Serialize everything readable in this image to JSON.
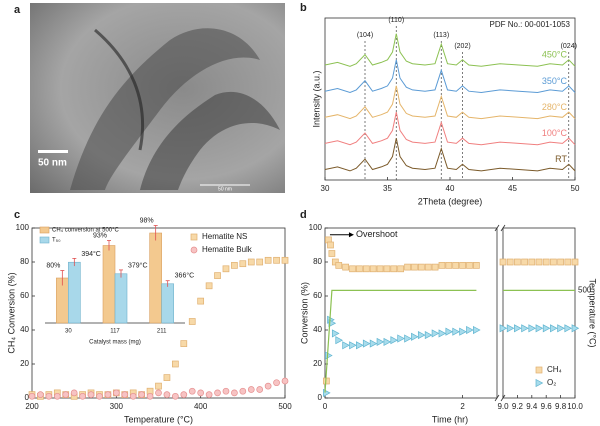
{
  "image_panel": {
    "panel": "a",
    "scale_bar": "50 nm",
    "ruler": "50 nm"
  },
  "chart_data": [
    {
      "type": "line",
      "panel": "b",
      "xlabel": "2Theta (degree)",
      "ylabel": "Intensity (a.u.)",
      "annotation": "PDF No.: 00-001-1053",
      "xlim": [
        30,
        50
      ],
      "xticks": [
        30,
        35,
        40,
        45,
        50
      ],
      "ylim": [
        0,
        6.2
      ],
      "reference_lines": [
        {
          "label": "(104)",
          "x": 33.2
        },
        {
          "label": "(110)",
          "x": 35.7
        },
        {
          "label": "(113)",
          "x": 39.3
        },
        {
          "label": "(202)",
          "x": 41
        },
        {
          "label": "(024)",
          "x": 49.5
        }
      ],
      "x": [
        30,
        31,
        32,
        32.5,
        33.2,
        33.8,
        34.5,
        35,
        35.4,
        35.7,
        36,
        36.5,
        37,
        38,
        38.8,
        39.3,
        39.8,
        40.5,
        41,
        41.5,
        42.5,
        44,
        45.5,
        47,
        48,
        49,
        49.5,
        50
      ],
      "series": [
        {
          "name": "RT",
          "color": "#7b5a2a",
          "values": [
            0.4,
            0.5,
            0.35,
            0.45,
            0.8,
            0.4,
            0.5,
            0.6,
            0.9,
            1.6,
            0.9,
            0.55,
            0.45,
            0.4,
            0.45,
            1.2,
            0.45,
            0.4,
            0.6,
            0.4,
            0.35,
            0.45,
            0.4,
            0.35,
            0.45,
            0.4,
            0.6,
            0.35
          ]
        },
        {
          "name": "100°C",
          "color": "#f07f7f",
          "values": [
            1.4,
            1.5,
            1.35,
            1.45,
            1.8,
            1.4,
            1.5,
            1.6,
            1.9,
            2.6,
            1.9,
            1.55,
            1.45,
            1.4,
            1.45,
            2.2,
            1.45,
            1.4,
            1.6,
            1.4,
            1.35,
            1.45,
            1.4,
            1.35,
            1.45,
            1.4,
            1.6,
            1.35
          ]
        },
        {
          "name": "280°C",
          "color": "#e5b56a",
          "values": [
            2.4,
            2.5,
            2.35,
            2.45,
            2.8,
            2.4,
            2.5,
            2.6,
            2.9,
            3.6,
            2.9,
            2.55,
            2.45,
            2.4,
            2.45,
            3.2,
            2.45,
            2.4,
            2.6,
            2.4,
            2.35,
            2.45,
            2.4,
            2.35,
            2.45,
            2.4,
            2.6,
            2.35
          ]
        },
        {
          "name": "350°C",
          "color": "#5b9bd5",
          "values": [
            3.4,
            3.5,
            3.35,
            3.45,
            3.8,
            3.4,
            3.5,
            3.6,
            3.9,
            4.6,
            3.9,
            3.55,
            3.45,
            3.4,
            3.45,
            4.2,
            3.45,
            3.4,
            3.6,
            3.4,
            3.35,
            3.45,
            3.4,
            3.35,
            3.45,
            3.4,
            3.6,
            3.35
          ]
        },
        {
          "name": "450°C",
          "color": "#8cc152",
          "values": [
            4.4,
            4.5,
            4.35,
            4.45,
            4.8,
            4.4,
            4.5,
            4.6,
            4.9,
            5.6,
            4.9,
            4.55,
            4.45,
            4.4,
            4.45,
            5.2,
            4.45,
            4.4,
            4.6,
            4.4,
            4.35,
            4.45,
            4.4,
            4.35,
            4.45,
            4.4,
            4.6,
            4.35
          ]
        }
      ]
    },
    {
      "type": "scatter",
      "panel": "c",
      "xlabel": "Temperature (°C)",
      "ylabel": "CH₄ Conversion (%)",
      "legend": "upper right",
      "xlim": [
        200,
        500
      ],
      "xticks": [
        200,
        300,
        400,
        500
      ],
      "ylim": [
        0,
        100
      ],
      "yticks": [
        0,
        20,
        40,
        60,
        80,
        100
      ],
      "x": [
        200,
        210,
        220,
        230,
        240,
        250,
        260,
        270,
        280,
        290,
        300,
        310,
        320,
        330,
        340,
        350,
        360,
        370,
        380,
        390,
        400,
        410,
        420,
        430,
        440,
        450,
        460,
        470,
        480,
        490,
        500
      ],
      "series": [
        {
          "name": "Hematite NS",
          "marker": "square",
          "color": "#f7d9a8",
          "edge": "#e0b070",
          "values": [
            2,
            1,
            2,
            3,
            2,
            1,
            2,
            3,
            2,
            2,
            3,
            2,
            3,
            2,
            4,
            7,
            12,
            20,
            32,
            45,
            57,
            66,
            72,
            76,
            78,
            79,
            80,
            80,
            81,
            81,
            81
          ]
        },
        {
          "name": "Hematite Bulk",
          "marker": "circle",
          "color": "#f7c3c3",
          "edge": "#e58f8f",
          "values": [
            1,
            2,
            1,
            1,
            2,
            3,
            1,
            2,
            1,
            2,
            3,
            2,
            1,
            2,
            1,
            3,
            2,
            1,
            2,
            4,
            3,
            2,
            3,
            4,
            3,
            4,
            5,
            5,
            7,
            9,
            10
          ]
        }
      ]
    },
    {
      "type": "bar",
      "xlabel": "Catalyst mass (mg)",
      "legend": "upper left",
      "categories": [
        "30",
        "117",
        "211"
      ],
      "ylim": [
        62,
        102
      ],
      "y2lim": [
        315,
        445
      ],
      "error_color": "#e05050",
      "series": [
        {
          "name": "CH₄ conversion at 500°C",
          "color": "#f3c98f",
          "edge": "#d9a060",
          "values": [
            80,
            93,
            98
          ],
          "errors": [
            3,
            2,
            3
          ],
          "value_labels": [
            "80%",
            "93%",
            "98%"
          ]
        },
        {
          "name": "T₅₀",
          "color": "#a8d8ea",
          "edge": "#6fb1cc",
          "axis": "y2",
          "values": [
            394,
            379,
            366
          ],
          "errors": [
            5,
            5,
            4
          ],
          "value_labels": [
            "394°C",
            "379°C",
            "366°C"
          ]
        }
      ]
    },
    {
      "type": "scatter",
      "panel": "d",
      "xlabel": "Time (hr)",
      "ylabel": "Conversion (%)",
      "y2label": "Temperature (°C)",
      "legend": "lower right",
      "xlim": [
        0,
        2.5
      ],
      "xticks": [
        0,
        2
      ],
      "x2lim": [
        9,
        10
      ],
      "x2ticks": [
        {
          "value": 9,
          "label": "9.0"
        },
        9.2,
        9.4,
        9.6,
        9.8,
        {
          "value": 10,
          "label": "10.0"
        }
      ],
      "ylim": [
        0,
        100
      ],
      "yticks": [
        0,
        20,
        40,
        60,
        80,
        100
      ],
      "y2lim": [
        0,
        790
      ],
      "y2ticks": [
        500
      ],
      "annotations": [
        {
          "text": "Overshoot",
          "x": 0.45,
          "y": 96
        }
      ],
      "x": [
        0.02,
        0.05,
        0.08,
        0.1,
        0.15,
        0.2,
        0.3,
        0.4,
        0.5,
        0.6,
        0.7,
        0.8,
        0.9,
        1.0,
        1.1,
        1.2,
        1.3,
        1.4,
        1.5,
        1.6,
        1.7,
        1.8,
        1.9,
        2.0,
        2.1,
        2.2,
        9.0,
        9.1,
        9.2,
        9.3,
        9.4,
        9.5,
        9.6,
        9.7,
        9.8,
        9.9,
        10.0
      ],
      "series": [
        {
          "name": "CH₄",
          "marker": "square",
          "color": "#f7d9a8",
          "edge": "#e0b070",
          "values": [
            10,
            93,
            90,
            85,
            80,
            78,
            77,
            76,
            76,
            76,
            76,
            76,
            76,
            76,
            76,
            77,
            77,
            77,
            77,
            77,
            78,
            78,
            78,
            78,
            78,
            78,
            80,
            80,
            80,
            80,
            80,
            80,
            80,
            80,
            80,
            80,
            80
          ]
        },
        {
          "name": "O₂",
          "marker": "triangle",
          "color": "#a8dcec",
          "edge": "#5fb4d0",
          "values": [
            3,
            25,
            46,
            44,
            38,
            34,
            31,
            31,
            31,
            32,
            32,
            33,
            33,
            34,
            35,
            35,
            36,
            37,
            37,
            38,
            38,
            39,
            39,
            39,
            40,
            40,
            41,
            41,
            41,
            41,
            41,
            41,
            41,
            41,
            41,
            41,
            41
          ]
        },
        {
          "style": "line",
          "axis": "y2",
          "color": "#8cc152",
          "x": [
            0,
            0.1,
            2.2,
            9.0,
            10.0
          ],
          "values": [
            25,
            500,
            500,
            500,
            500
          ]
        }
      ]
    }
  ]
}
